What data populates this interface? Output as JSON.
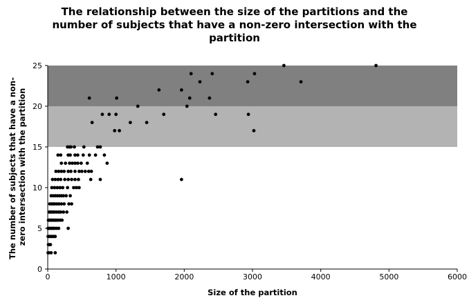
{
  "chart_data": {
    "type": "scatter",
    "title_lines": [
      "The relationship between the size of the partitions and the",
      "number of subjects that have a non-zero intersection with the",
      "partition"
    ],
    "xlabel": "Size of the partition",
    "ylabel_lines": [
      "The number of subjects that have a non-",
      "zero intersection with the partition"
    ],
    "xlim": [
      0,
      6000
    ],
    "ylim": [
      0,
      25
    ],
    "xticks": [
      "0",
      "1000",
      "2000",
      "3000",
      "4000",
      "5000",
      "6000"
    ],
    "yticks": [
      "0",
      "5",
      "10",
      "15",
      "20",
      "25"
    ],
    "grid": false,
    "legend": "none",
    "bands": [
      {
        "y0": 20,
        "y1": 25,
        "color": "#808080"
      },
      {
        "y0": 15,
        "y1": 20,
        "color": "#b3b3b3"
      }
    ],
    "point_color": "#000000",
    "points": [
      [
        5,
        2
      ],
      [
        15,
        2
      ],
      [
        50,
        2
      ],
      [
        110,
        2
      ],
      [
        10,
        3
      ],
      [
        25,
        3
      ],
      [
        40,
        3
      ],
      [
        5,
        4
      ],
      [
        15,
        4
      ],
      [
        30,
        4
      ],
      [
        50,
        4
      ],
      [
        70,
        4
      ],
      [
        90,
        4
      ],
      [
        110,
        4
      ],
      [
        5,
        5
      ],
      [
        20,
        5
      ],
      [
        40,
        5
      ],
      [
        60,
        5
      ],
      [
        80,
        5
      ],
      [
        100,
        5
      ],
      [
        130,
        5
      ],
      [
        160,
        5
      ],
      [
        300,
        5
      ],
      [
        10,
        6
      ],
      [
        25,
        6
      ],
      [
        45,
        6
      ],
      [
        65,
        6
      ],
      [
        85,
        6
      ],
      [
        105,
        6
      ],
      [
        125,
        6
      ],
      [
        150,
        6
      ],
      [
        180,
        6
      ],
      [
        210,
        6
      ],
      [
        20,
        7
      ],
      [
        40,
        7
      ],
      [
        60,
        7
      ],
      [
        80,
        7
      ],
      [
        100,
        7
      ],
      [
        130,
        7
      ],
      [
        160,
        7
      ],
      [
        190,
        7
      ],
      [
        230,
        7
      ],
      [
        280,
        7
      ],
      [
        30,
        8
      ],
      [
        55,
        8
      ],
      [
        80,
        8
      ],
      [
        105,
        8
      ],
      [
        135,
        8
      ],
      [
        165,
        8
      ],
      [
        200,
        8
      ],
      [
        240,
        8
      ],
      [
        310,
        8
      ],
      [
        350,
        8
      ],
      [
        50,
        9
      ],
      [
        80,
        9
      ],
      [
        110,
        9
      ],
      [
        140,
        9
      ],
      [
        170,
        9
      ],
      [
        200,
        9
      ],
      [
        230,
        9
      ],
      [
        270,
        9
      ],
      [
        330,
        9
      ],
      [
        60,
        10
      ],
      [
        100,
        10
      ],
      [
        140,
        10
      ],
      [
        180,
        10
      ],
      [
        220,
        10
      ],
      [
        290,
        10
      ],
      [
        380,
        10
      ],
      [
        420,
        10
      ],
      [
        460,
        10
      ],
      [
        70,
        11
      ],
      [
        110,
        11
      ],
      [
        150,
        11
      ],
      [
        190,
        11
      ],
      [
        250,
        11
      ],
      [
        300,
        11
      ],
      [
        350,
        11
      ],
      [
        400,
        11
      ],
      [
        450,
        11
      ],
      [
        630,
        11
      ],
      [
        770,
        11
      ],
      [
        1960,
        11
      ],
      [
        120,
        12
      ],
      [
        160,
        12
      ],
      [
        200,
        12
      ],
      [
        240,
        12
      ],
      [
        300,
        12
      ],
      [
        340,
        12
      ],
      [
        400,
        12
      ],
      [
        460,
        12
      ],
      [
        500,
        12
      ],
      [
        550,
        12
      ],
      [
        600,
        12
      ],
      [
        640,
        12
      ],
      [
        200,
        13
      ],
      [
        260,
        13
      ],
      [
        320,
        13
      ],
      [
        360,
        13
      ],
      [
        400,
        13
      ],
      [
        440,
        13
      ],
      [
        490,
        13
      ],
      [
        580,
        13
      ],
      [
        870,
        13
      ],
      [
        150,
        14
      ],
      [
        190,
        14
      ],
      [
        300,
        14
      ],
      [
        330,
        14
      ],
      [
        400,
        14
      ],
      [
        440,
        14
      ],
      [
        520,
        14
      ],
      [
        610,
        14
      ],
      [
        700,
        14
      ],
      [
        830,
        14
      ],
      [
        290,
        15
      ],
      [
        320,
        15
      ],
      [
        340,
        15
      ],
      [
        390,
        15
      ],
      [
        530,
        15
      ],
      [
        730,
        15
      ],
      [
        770,
        15
      ],
      [
        800,
        19
      ],
      [
        900,
        19
      ],
      [
        1000,
        19
      ],
      [
        1050,
        17
      ],
      [
        1450,
        18
      ],
      [
        1700,
        19
      ],
      [
        1210,
        18
      ],
      [
        650,
        18
      ],
      [
        980,
        17
      ],
      [
        610,
        21
      ],
      [
        1010,
        21
      ],
      [
        1320,
        20
      ],
      [
        1630,
        22
      ],
      [
        1960,
        22
      ],
      [
        2040,
        20
      ],
      [
        2080,
        21
      ],
      [
        2100,
        24
      ],
      [
        2230,
        23
      ],
      [
        2370,
        21
      ],
      [
        2410,
        24
      ],
      [
        2460,
        19
      ],
      [
        2930,
        23
      ],
      [
        2940,
        19
      ],
      [
        3020,
        17
      ],
      [
        3030,
        24
      ],
      [
        3460,
        25
      ],
      [
        3710,
        23
      ],
      [
        4810,
        25
      ]
    ]
  }
}
